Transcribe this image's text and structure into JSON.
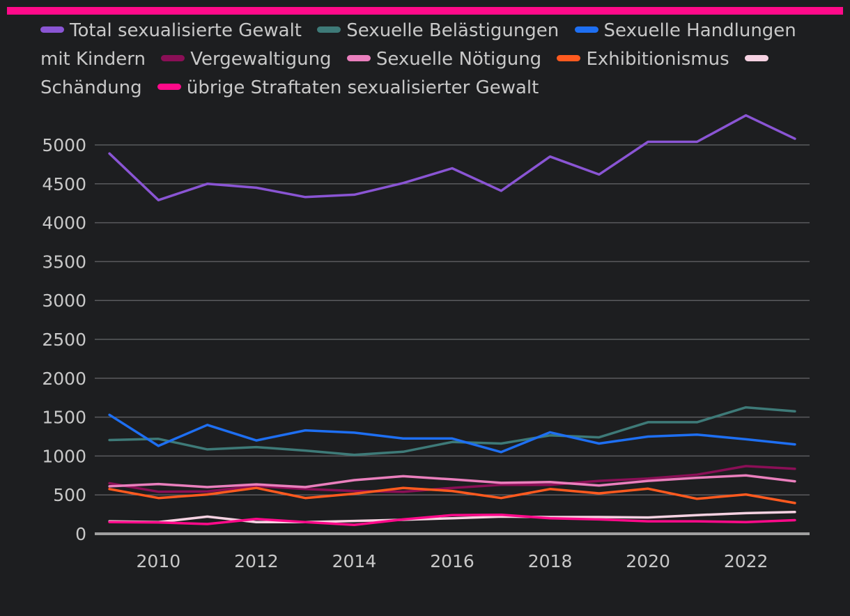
{
  "colors": {
    "background": "#1d1e20",
    "accent_bar": "#ff0a8a",
    "grid": "#5a5b5e",
    "axis": "#a0a0a0",
    "text": "#c8c8c8"
  },
  "chart_data": {
    "type": "line",
    "title": "",
    "xlabel": "",
    "ylabel": "",
    "x": [
      2009,
      2010,
      2011,
      2012,
      2013,
      2014,
      2015,
      2016,
      2017,
      2018,
      2019,
      2020,
      2021,
      2022,
      2023
    ],
    "x_ticks": [
      "2010",
      "2012",
      "2014",
      "2016",
      "2018",
      "2020",
      "2022"
    ],
    "y_ticks": [
      "0",
      "500",
      "1000",
      "1500",
      "2000",
      "2500",
      "3000",
      "3500",
      "4000",
      "4500",
      "5000"
    ],
    "ylim": [
      0,
      5450
    ],
    "xlim": [
      2008.7,
      2023.3
    ],
    "grid": true,
    "legend_position": "top",
    "series": [
      {
        "name": "Total sexualisierte Gewalt",
        "color": "#8a55d4",
        "values": [
          4890,
          4290,
          4500,
          4450,
          4330,
          4360,
          4510,
          4700,
          4410,
          4850,
          4620,
          5040,
          5040,
          5380,
          5080
        ]
      },
      {
        "name": "Sexuelle Belästigungen",
        "color": "#3e7a78",
        "values": [
          1205,
          1220,
          1085,
          1115,
          1070,
          1015,
          1055,
          1180,
          1160,
          1265,
          1240,
          1435,
          1435,
          1625,
          1575
        ]
      },
      {
        "name": "Sexuelle Handlungen mit Kindern",
        "color": "#1e6ff2",
        "values": [
          1530,
          1130,
          1400,
          1200,
          1330,
          1300,
          1225,
          1225,
          1050,
          1305,
          1160,
          1250,
          1275,
          1215,
          1150
        ]
      },
      {
        "name": "Vergewaltigung",
        "color": "#8a0f56",
        "values": [
          650,
          540,
          545,
          615,
          575,
          550,
          540,
          590,
          630,
          630,
          680,
          710,
          760,
          870,
          835
        ]
      },
      {
        "name": "Sexuelle Nötigung",
        "color": "#ea7fbd",
        "values": [
          610,
          640,
          600,
          635,
          600,
          690,
          740,
          700,
          655,
          665,
          620,
          680,
          720,
          750,
          675
        ]
      },
      {
        "name": "Exhibitionismus",
        "color": "#ff5a1f",
        "values": [
          575,
          460,
          505,
          590,
          460,
          515,
          590,
          550,
          460,
          575,
          520,
          580,
          450,
          505,
          395
        ]
      },
      {
        "name": "Schändung",
        "color": "#f6d2e2",
        "values": [
          160,
          150,
          220,
          150,
          150,
          165,
          180,
          200,
          220,
          215,
          215,
          210,
          240,
          265,
          280
        ]
      },
      {
        "name": "übrige Straftaten sexualisierter Gewalt",
        "color": "#ff0a8a",
        "values": [
          150,
          145,
          125,
          190,
          150,
          115,
          185,
          240,
          245,
          200,
          185,
          160,
          160,
          150,
          175
        ]
      }
    ]
  }
}
